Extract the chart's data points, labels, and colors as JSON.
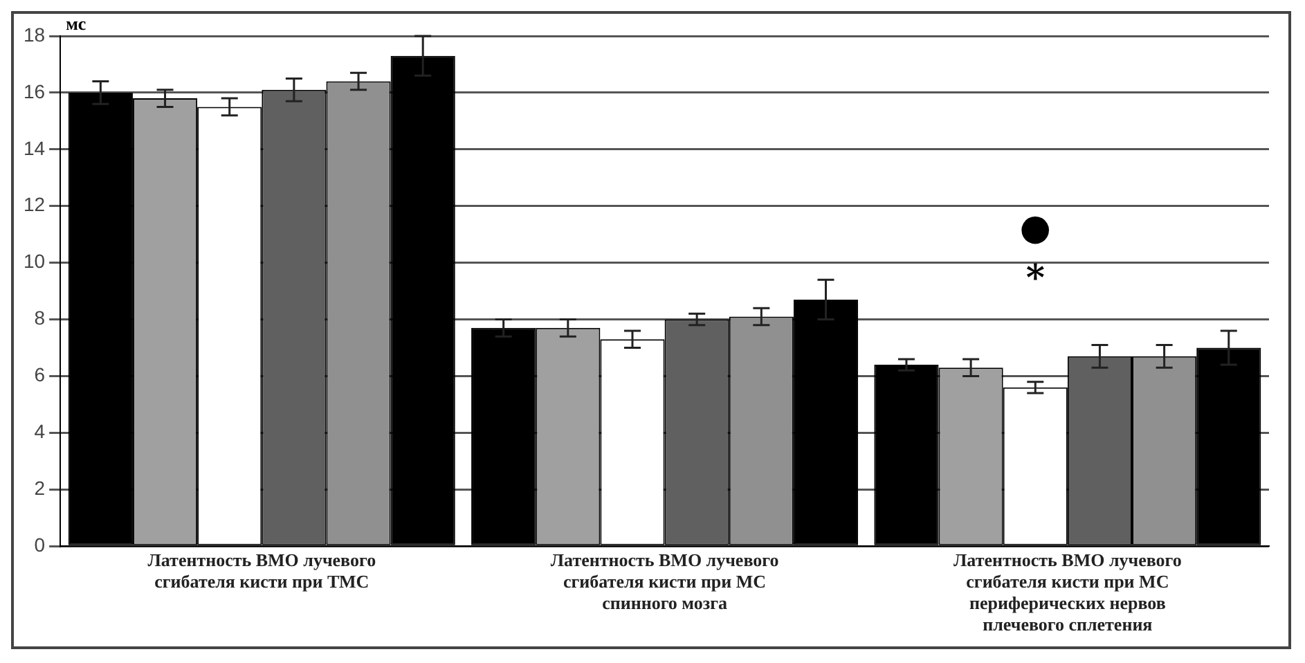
{
  "chart_data": {
    "type": "bar",
    "ylabel": "мс",
    "categories": [
      "Латентность ВМО лучевого сгибателя кисти при ТМС",
      "Латентность ВМО лучевого сгибателя кисти при МС спинного мозга",
      "Латентность ВМО лучевого сгибателя кисти при МС периферических нервов плечевого сплетения"
    ],
    "series": [
      {
        "color": "#000000",
        "values": [
          16.0,
          7.7,
          6.4
        ],
        "errors": [
          0.4,
          0.3,
          0.2
        ]
      },
      {
        "color": "#a0a0a0",
        "values": [
          15.8,
          7.7,
          6.3
        ],
        "errors": [
          0.3,
          0.3,
          0.3
        ]
      },
      {
        "color": "#ffffff",
        "values": [
          15.5,
          7.3,
          5.6
        ],
        "errors": [
          0.3,
          0.3,
          0.2
        ]
      },
      {
        "color": "#606060",
        "values": [
          16.1,
          8.0,
          6.7
        ],
        "errors": [
          0.4,
          0.2,
          0.4
        ]
      },
      {
        "color": "#909090",
        "values": [
          16.4,
          8.1,
          6.7
        ],
        "errors": [
          0.3,
          0.3,
          0.4
        ]
      },
      {
        "color": "#000000",
        "values": [
          17.3,
          8.7,
          7.0
        ],
        "errors": [
          0.7,
          0.7,
          0.6
        ]
      }
    ],
    "annotations": [
      "●",
      "*"
    ],
    "ylim": [
      0,
      18
    ],
    "yticks": [
      0,
      2,
      4,
      6,
      8,
      10,
      12,
      14,
      16,
      18
    ],
    "grid": "y"
  }
}
